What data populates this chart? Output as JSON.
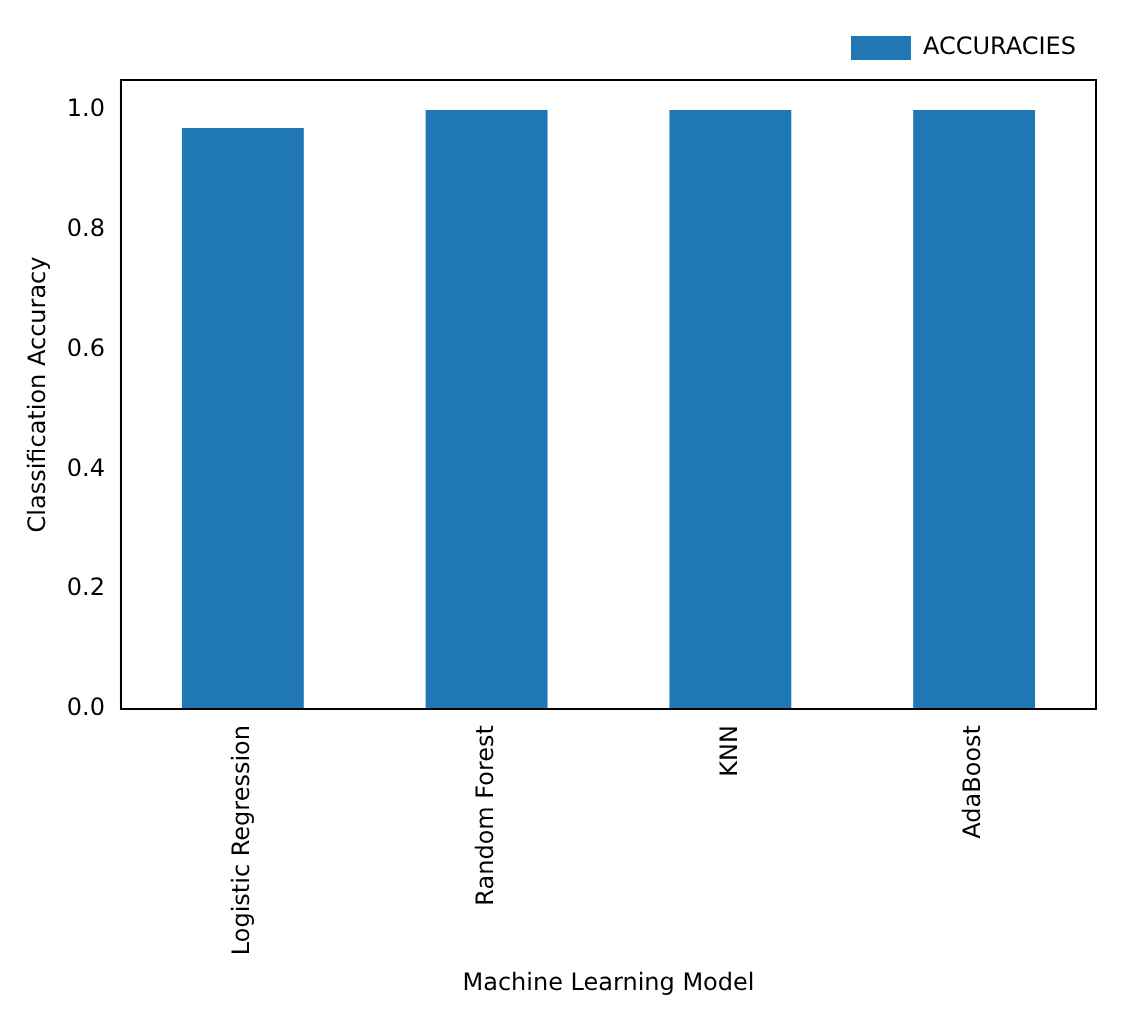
{
  "chart_data": {
    "type": "bar",
    "xlabel": "Machine Learning Model",
    "ylabel": "Classification Accuracy",
    "categories": [
      "Logistic Regression",
      "Random Forest",
      "KNN",
      "AdaBoost"
    ],
    "series": [
      {
        "name": "ACCURACIES",
        "color": "#1f77b4",
        "values": [
          0.97,
          1.0,
          1.0,
          1.0
        ]
      }
    ],
    "ylim": [
      0,
      1.05
    ],
    "yticks": [
      {
        "value": 0,
        "label": "0.0"
      },
      0.2,
      0.4,
      0.6,
      0.8,
      {
        "value": 1,
        "label": "1.0"
      }
    ],
    "grid": false,
    "legend": "top right"
  }
}
